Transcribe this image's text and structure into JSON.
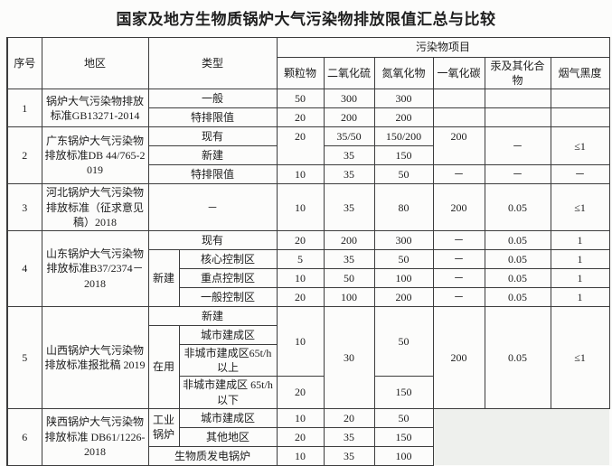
{
  "title": "国家及地方生物质锅炉大气污染物排放限值汇总与比较",
  "colors": {
    "border": "#3c3c3c",
    "mask": "#eef0ed",
    "background": "#fcfcfb"
  },
  "table": {
    "header": {
      "no": "序号",
      "region": "地区",
      "type": "类型",
      "pollutant_group": "污染物项目",
      "pollutants": [
        "颗粒物",
        "二氧化硫",
        "氮氧化物",
        "一氧化碳",
        "汞及其化合物",
        "烟气黑度"
      ]
    },
    "rows": [
      [
        {
          "t": "1",
          "rs": 2,
          "n": "row-no"
        },
        {
          "t": "锅炉大气污染物排放标准GB13271-2014",
          "rs": 2,
          "n": "region"
        },
        {
          "t": "一般",
          "cs": 2,
          "n": "type"
        },
        {
          "t": "50",
          "n": "value"
        },
        {
          "t": "300",
          "n": "value"
        },
        {
          "t": "300",
          "n": "value"
        },
        {
          "t": "",
          "n": "value"
        },
        {
          "t": "",
          "n": "value"
        },
        {
          "t": "",
          "n": "value"
        }
      ],
      [
        {
          "t": "特排限值",
          "cs": 2,
          "n": "type"
        },
        {
          "t": "20",
          "n": "value"
        },
        {
          "t": "200",
          "n": "value"
        },
        {
          "t": "200",
          "n": "value"
        },
        {
          "t": "",
          "n": "value"
        },
        {
          "t": "",
          "n": "value"
        },
        {
          "t": "",
          "n": "value"
        }
      ],
      [
        {
          "t": "2",
          "rs": 3,
          "n": "row-no"
        },
        {
          "t": "广东锅炉大气污染物排放标准DB 44/765-2019",
          "rs": 3,
          "n": "region"
        },
        {
          "t": "现有",
          "cs": 2,
          "n": "type"
        },
        {
          "t": "20",
          "rs": 2,
          "cls": "va-top",
          "n": "value"
        },
        {
          "t": "35/50",
          "n": "value"
        },
        {
          "t": "150/200",
          "n": "value"
        },
        {
          "t": "200",
          "rs": 2,
          "cls": "va-top",
          "n": "value"
        },
        {
          "t": "－",
          "rs": 2,
          "n": "value"
        },
        {
          "t": "≤1",
          "rs": 2,
          "n": "value"
        }
      ],
      [
        {
          "t": "新建",
          "cs": 2,
          "n": "type"
        },
        {
          "t": "35",
          "n": "value"
        },
        {
          "t": "150",
          "n": "value"
        }
      ],
      [
        {
          "t": "特排限值",
          "cs": 2,
          "n": "type"
        },
        {
          "t": "10",
          "n": "value"
        },
        {
          "t": "35",
          "n": "value"
        },
        {
          "t": "50",
          "n": "value"
        },
        {
          "t": "－",
          "n": "value"
        },
        {
          "t": "－",
          "n": "value"
        },
        {
          "t": "－",
          "n": "value"
        }
      ],
      [
        {
          "t": "3",
          "n": "row-no"
        },
        {
          "t": "河北锅炉大气污染物排放标准（征求意见稿）2018",
          "n": "region"
        },
        {
          "t": "－",
          "cs": 2,
          "n": "type"
        },
        {
          "t": "10",
          "n": "value"
        },
        {
          "t": "35",
          "n": "value"
        },
        {
          "t": "80",
          "n": "value"
        },
        {
          "t": "200",
          "n": "value"
        },
        {
          "t": "0.05",
          "n": "value"
        },
        {
          "t": "≤1",
          "n": "value"
        }
      ],
      [
        {
          "t": "4",
          "rs": 4,
          "n": "row-no"
        },
        {
          "t": "山东锅炉大气污染物排放标准B37/2374－2018",
          "rs": 4,
          "n": "region"
        },
        {
          "t": "现有",
          "cs": 2,
          "n": "type"
        },
        {
          "t": "20",
          "n": "value"
        },
        {
          "t": "200",
          "n": "value"
        },
        {
          "t": "300",
          "n": "value"
        },
        {
          "t": "－",
          "n": "value"
        },
        {
          "t": "0.05",
          "n": "value"
        },
        {
          "t": "1",
          "n": "value"
        }
      ],
      [
        {
          "t": "新建",
          "rs": 3,
          "n": "type"
        },
        {
          "t": "核心控制区",
          "n": "type"
        },
        {
          "t": "5",
          "n": "value"
        },
        {
          "t": "35",
          "n": "value"
        },
        {
          "t": "50",
          "n": "value"
        },
        {
          "t": "－",
          "n": "value"
        },
        {
          "t": "0.05",
          "n": "value"
        },
        {
          "t": "1",
          "n": "value"
        }
      ],
      [
        {
          "t": "重点控制区",
          "n": "type"
        },
        {
          "t": "10",
          "n": "value"
        },
        {
          "t": "50",
          "n": "value"
        },
        {
          "t": "100",
          "n": "value"
        },
        {
          "t": "－",
          "n": "value"
        },
        {
          "t": "0.05",
          "n": "value"
        },
        {
          "t": "1",
          "n": "value"
        }
      ],
      [
        {
          "t": "一般控制区",
          "n": "type"
        },
        {
          "t": "20",
          "n": "value"
        },
        {
          "t": "100",
          "n": "value"
        },
        {
          "t": "200",
          "n": "value"
        },
        {
          "t": "－",
          "n": "value"
        },
        {
          "t": "0.05",
          "n": "value"
        },
        {
          "t": "1",
          "n": "value"
        }
      ],
      [
        {
          "t": "5",
          "rs": 4,
          "n": "row-no"
        },
        {
          "t": "山西锅炉大气污染物排放标准报批稿 2019",
          "rs": 4,
          "n": "region"
        },
        {
          "t": "新建",
          "cs": 2,
          "n": "type"
        },
        {
          "t": "10",
          "rs": 3,
          "n": "value"
        },
        {
          "t": "30",
          "rs": 4,
          "n": "value"
        },
        {
          "t": "50",
          "rs": 3,
          "n": "value"
        },
        {
          "t": "200",
          "rs": 4,
          "n": "value"
        },
        {
          "t": "0.05",
          "rs": 4,
          "n": "value"
        },
        {
          "t": "≤1",
          "rs": 4,
          "n": "value"
        }
      ],
      [
        {
          "t": "在用",
          "rs": 3,
          "n": "type"
        },
        {
          "t": "城市建成区",
          "n": "type"
        }
      ],
      [
        {
          "t": "非城市建成区65t/h 以上",
          "n": "type"
        }
      ],
      [
        {
          "t": "非城市建成区 65t/h 以下",
          "n": "type"
        },
        {
          "t": "20",
          "n": "value"
        },
        {
          "t": "150",
          "n": "value"
        }
      ],
      [
        {
          "t": "6",
          "rs": 3,
          "n": "row-no"
        },
        {
          "t": "陕西锅炉大气污染物排放标准 DB61/1226-2018",
          "rs": 3,
          "n": "region"
        },
        {
          "t": "工业锅炉",
          "rs": 2,
          "n": "type"
        },
        {
          "t": "城市建成区",
          "n": "type"
        },
        {
          "t": "10",
          "n": "value"
        },
        {
          "t": "20",
          "n": "value"
        },
        {
          "t": "50",
          "n": "value"
        },
        {
          "t": "",
          "rs": 3,
          "cs": 3,
          "cls": "masked",
          "n": "masked-area"
        }
      ],
      [
        {
          "t": "其他地区",
          "n": "type"
        },
        {
          "t": "20",
          "n": "value"
        },
        {
          "t": "35",
          "n": "value"
        },
        {
          "t": "150",
          "n": "value"
        }
      ],
      [
        {
          "t": "生物质发电锅炉",
          "cs": 2,
          "n": "type"
        },
        {
          "t": "10",
          "n": "value"
        },
        {
          "t": "35",
          "n": "value"
        },
        {
          "t": "100",
          "n": "value"
        }
      ]
    ]
  }
}
